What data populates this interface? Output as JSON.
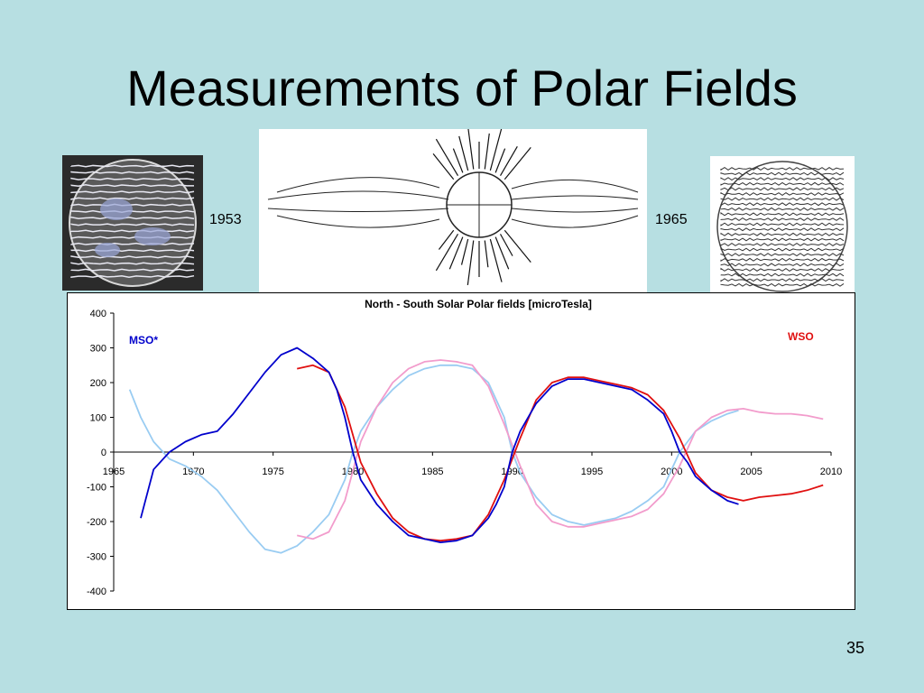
{
  "slide": {
    "title": "Measurements of Polar Fields",
    "page_number": "35"
  },
  "images": {
    "left_year": "1953",
    "right_year": "1965"
  },
  "colors": {
    "background": "#b7dfe2",
    "mso_north": "#0000cc",
    "mso_south": "#99ccf2",
    "wso_north": "#e01010",
    "wso_south": "#f29ccc"
  },
  "chart_data": {
    "type": "line",
    "title": "North - South Solar Polar fields [microTesla]",
    "xlabel": "",
    "ylabel": "",
    "xlim": [
      1965,
      2010
    ],
    "ylim": [
      -400,
      400
    ],
    "xticks": [
      1965,
      1970,
      1975,
      1980,
      1985,
      1990,
      1995,
      2000,
      2005,
      2010
    ],
    "yticks": [
      400,
      300,
      200,
      100,
      0,
      -100,
      -200,
      -300,
      -400
    ],
    "grid": false,
    "legend": {
      "left_label": "MSO*",
      "right_label": "WSO"
    },
    "series": [
      {
        "group": "MSO*",
        "color": "#0000cc",
        "x": [
          1966.7,
          1967.5,
          1968.5,
          1969.5,
          1970.5,
          1971.5,
          1972.5,
          1973.5,
          1974.5,
          1975.5,
          1976.5,
          1977.5,
          1978.5,
          1979.0,
          1979.5,
          1980.0,
          1980.5,
          1981.5,
          1982.5,
          1983.5,
          1984.5,
          1985.5,
          1986.5,
          1987.5,
          1988.5,
          1989.0,
          1989.5,
          1990.0,
          1990.5,
          1991.5,
          1992.5,
          1993.5,
          1994.5,
          1995.5,
          1996.5,
          1997.5,
          1998.5,
          1999.5,
          2000.0,
          2000.5,
          2001.0,
          2001.5,
          2002.5,
          2003.5,
          2004.2
        ],
        "values": [
          -190,
          -50,
          0,
          30,
          50,
          60,
          110,
          170,
          230,
          280,
          300,
          270,
          230,
          180,
          100,
          0,
          -80,
          -150,
          -200,
          -240,
          -250,
          -260,
          -255,
          -240,
          -190,
          -150,
          -100,
          0,
          60,
          140,
          190,
          210,
          210,
          200,
          190,
          180,
          150,
          110,
          60,
          0,
          -30,
          -70,
          -110,
          -140,
          -150
        ]
      },
      {
        "group": "MSO*",
        "color": "#99ccf2",
        "x": [
          1966.0,
          1966.7,
          1967.5,
          1968.5,
          1969.5,
          1970.5,
          1971.5,
          1972.5,
          1973.5,
          1974.5,
          1975.5,
          1976.5,
          1977.5,
          1978.5,
          1979.0,
          1979.5,
          1980.0,
          1980.5,
          1981.5,
          1982.5,
          1983.5,
          1984.5,
          1985.5,
          1986.5,
          1987.5,
          1988.5,
          1989.0,
          1989.5,
          1990.0,
          1990.5,
          1991.5,
          1992.5,
          1993.5,
          1994.5,
          1995.5,
          1996.5,
          1997.5,
          1998.5,
          1999.5,
          2000.0,
          2000.5,
          2001.0,
          2001.5,
          2002.5,
          2003.5,
          2004.2
        ],
        "values": [
          180,
          100,
          30,
          -20,
          -40,
          -70,
          -110,
          -170,
          -230,
          -280,
          -290,
          -270,
          -230,
          -180,
          -130,
          -80,
          0,
          60,
          130,
          180,
          220,
          240,
          250,
          250,
          240,
          200,
          150,
          100,
          0,
          -60,
          -130,
          -180,
          -200,
          -210,
          -200,
          -190,
          -170,
          -140,
          -100,
          -50,
          0,
          30,
          60,
          90,
          110,
          120
        ]
      },
      {
        "group": "WSO",
        "color": "#e01010",
        "x": [
          1976.5,
          1977.5,
          1978.5,
          1979.5,
          1980.5,
          1981.5,
          1982.5,
          1983.5,
          1984.5,
          1985.5,
          1986.5,
          1987.5,
          1988.5,
          1989.5,
          1990.5,
          1991.5,
          1992.5,
          1993.5,
          1994.5,
          1995.5,
          1996.5,
          1997.5,
          1998.5,
          1999.5,
          2000.5,
          2001.5,
          2002.5,
          2003.5,
          2004.5,
          2005.5,
          2006.5,
          2007.5,
          2008.5,
          2009.5
        ],
        "values": [
          240,
          250,
          230,
          130,
          -30,
          -120,
          -190,
          -230,
          -250,
          -255,
          -250,
          -240,
          -180,
          -80,
          40,
          150,
          200,
          215,
          215,
          205,
          195,
          185,
          165,
          120,
          40,
          -60,
          -110,
          -130,
          -140,
          -130,
          -125,
          -120,
          -110,
          -95
        ]
      },
      {
        "group": "WSO",
        "color": "#f29ccc",
        "x": [
          1976.5,
          1977.5,
          1978.5,
          1979.5,
          1980.5,
          1981.5,
          1982.5,
          1983.5,
          1984.5,
          1985.5,
          1986.5,
          1987.5,
          1988.5,
          1989.5,
          1990.5,
          1991.5,
          1992.5,
          1993.5,
          1994.5,
          1995.5,
          1996.5,
          1997.5,
          1998.5,
          1999.5,
          2000.5,
          2001.5,
          2002.5,
          2003.5,
          2004.5,
          2005.5,
          2006.5,
          2007.5,
          2008.5,
          2009.5
        ],
        "values": [
          -240,
          -250,
          -230,
          -140,
          30,
          130,
          200,
          240,
          260,
          265,
          260,
          250,
          190,
          80,
          -40,
          -150,
          -200,
          -215,
          -215,
          -205,
          -195,
          -185,
          -165,
          -120,
          -40,
          60,
          100,
          120,
          125,
          115,
          110,
          110,
          105,
          95
        ]
      }
    ]
  }
}
